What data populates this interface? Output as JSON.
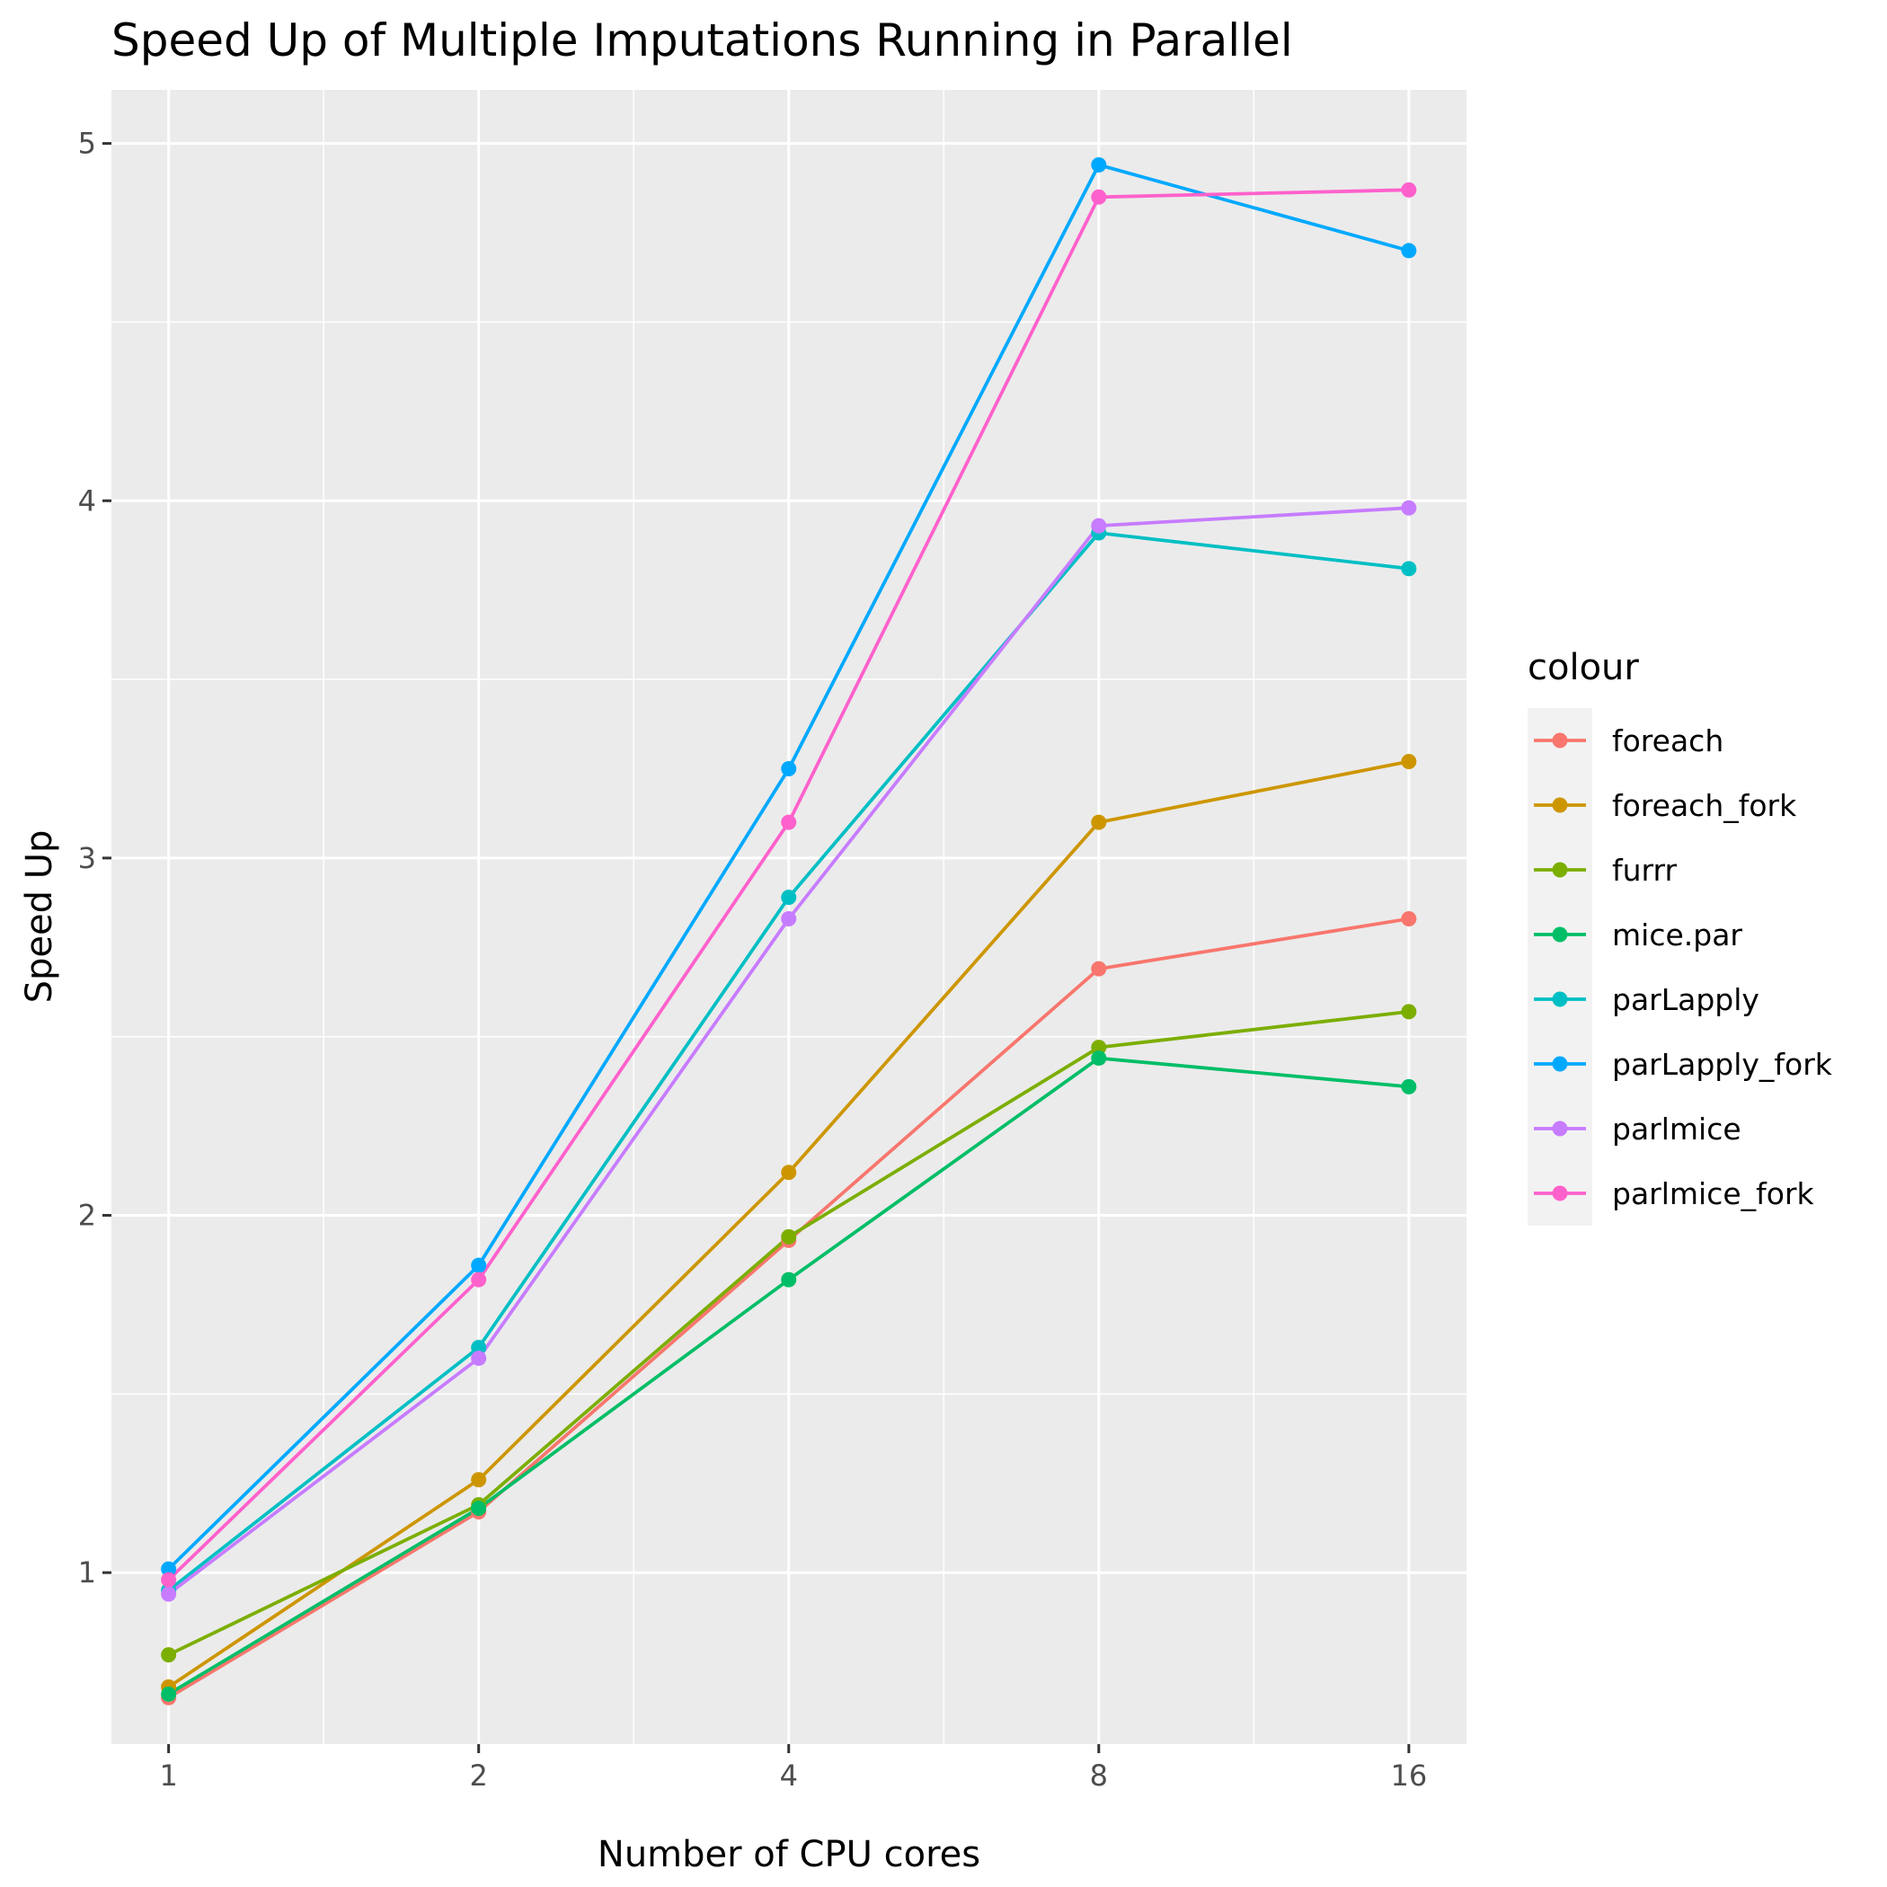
{
  "chart_data": {
    "type": "line",
    "title": "Speed Up of Multiple Imputations Running in Parallel",
    "xlabel": "Number of CPU cores",
    "ylabel": "Speed Up",
    "x_scale": "log2",
    "xlim": [
      0.88,
      18.2
    ],
    "ylim": [
      0.52,
      5.15
    ],
    "x_ticks": [
      1,
      2,
      4,
      8,
      16
    ],
    "x_tick_labels": [
      "1",
      "2",
      "4",
      "8",
      "16"
    ],
    "y_ticks": [
      1,
      2,
      3,
      4,
      5
    ],
    "y_tick_labels": [
      "1",
      "2",
      "3",
      "4",
      "5"
    ],
    "grid": true,
    "legend_title": "colour",
    "legend_position": "right",
    "x": [
      1,
      2,
      4,
      8,
      16
    ],
    "series": [
      {
        "name": "foreach",
        "color": "#F8766D",
        "values": [
          0.65,
          1.17,
          1.93,
          2.69,
          2.83
        ]
      },
      {
        "name": "foreach_fork",
        "color": "#CD9600",
        "values": [
          0.68,
          1.26,
          2.12,
          3.1,
          3.27
        ]
      },
      {
        "name": "furrr",
        "color": "#7CAE00",
        "values": [
          0.77,
          1.19,
          1.94,
          2.47,
          2.57
        ]
      },
      {
        "name": "mice.par",
        "color": "#00BE67",
        "values": [
          0.66,
          1.18,
          1.82,
          2.44,
          2.36
        ]
      },
      {
        "name": "parLapply",
        "color": "#00BFC4",
        "values": [
          0.95,
          1.63,
          2.89,
          3.91,
          3.81
        ]
      },
      {
        "name": "parLapply_fork",
        "color": "#00A9FF",
        "values": [
          1.01,
          1.86,
          3.25,
          4.94,
          4.7
        ]
      },
      {
        "name": "parlmice",
        "color": "#C77CFF",
        "values": [
          0.94,
          1.6,
          2.83,
          3.93,
          3.98
        ]
      },
      {
        "name": "parlmice_fork",
        "color": "#FF61CC",
        "values": [
          0.98,
          1.82,
          3.1,
          4.85,
          4.87
        ]
      }
    ]
  }
}
